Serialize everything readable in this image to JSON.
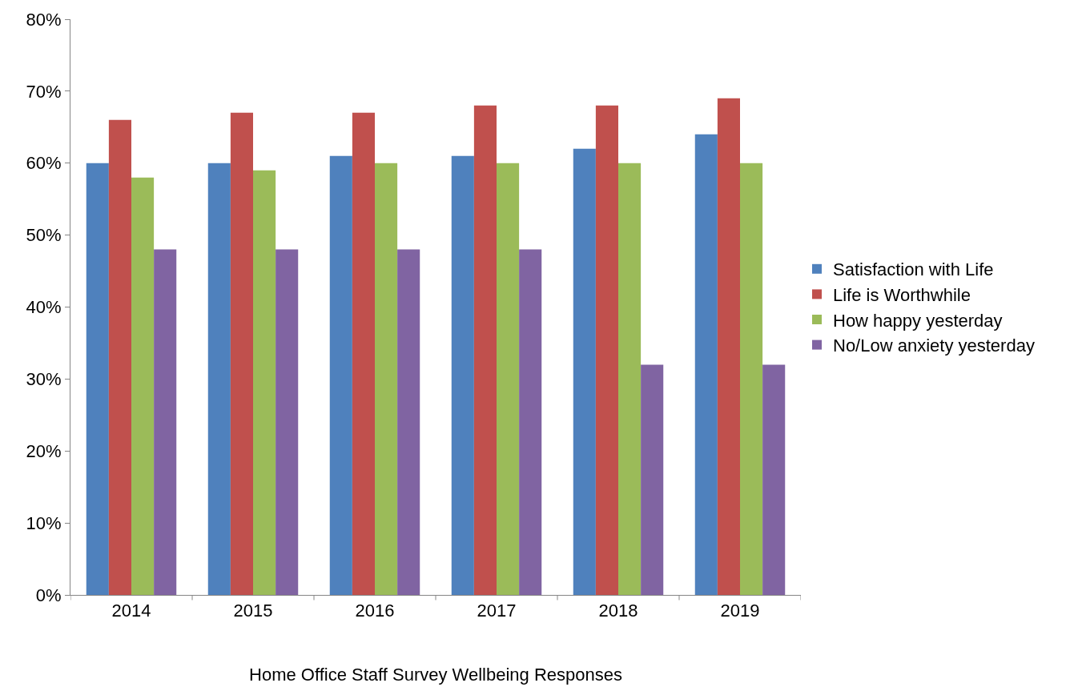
{
  "chart_data": {
    "type": "bar",
    "xlabel": "Home Office Staff Survey Wellbeing Responses",
    "categories": [
      "2014",
      "2015",
      "2016",
      "2017",
      "2018",
      "2019"
    ],
    "series": [
      {
        "name": "Satisfaction with Life",
        "color": "#4f81bd",
        "values": [
          60,
          60,
          61,
          61,
          62,
          64
        ]
      },
      {
        "name": "Life is Worthwhile",
        "color": "#c0504d",
        "values": [
          66,
          67,
          67,
          68,
          68,
          69
        ]
      },
      {
        "name": "How happy yesterday",
        "color": "#9bbb59",
        "values": [
          58,
          59,
          60,
          60,
          60,
          60
        ]
      },
      {
        "name": "No/Low anxiety yesterday",
        "color": "#8064a2",
        "values": [
          48,
          48,
          48,
          48,
          32,
          32
        ]
      }
    ],
    "ylim": [
      0,
      80
    ],
    "yticks": [
      {
        "value": 0,
        "label": "0%"
      },
      {
        "value": 10,
        "label": "10%"
      },
      {
        "value": 20,
        "label": "20%"
      },
      {
        "value": 30,
        "label": "30%"
      },
      {
        "value": 40,
        "label": "40%"
      },
      {
        "value": 50,
        "label": "50%"
      },
      {
        "value": 60,
        "label": "60%"
      },
      {
        "value": 70,
        "label": "70%"
      },
      {
        "value": 80,
        "label": "80%"
      }
    ],
    "legend": "right"
  }
}
